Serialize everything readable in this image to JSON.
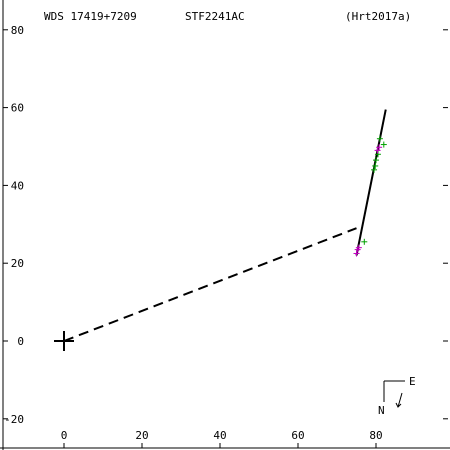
{
  "chart_data": {
    "type": "scatter",
    "title_left": "WDS 17419+7209",
    "title_center": "STF2241AC",
    "title_right": "(Hrt2017a)",
    "x_ticks": [
      0,
      20,
      40,
      60,
      80
    ],
    "y_ticks": [
      80,
      60,
      40,
      20,
      0,
      -20
    ],
    "x_tick_labels": [
      "0",
      "20",
      "40",
      "60",
      "80"
    ],
    "y_tick_labels": [
      "80",
      "60",
      "40",
      "20",
      "0",
      "-20"
    ],
    "xlim": [
      -15,
      100
    ],
    "ylim": [
      -27,
      83
    ],
    "orientation": {
      "north_label": "N",
      "east_label": "E"
    },
    "primary_star": {
      "x": 0,
      "y": 0
    },
    "orbit_line": {
      "start": {
        "x": 75,
        "y": 22
      },
      "end": {
        "x": 82.5,
        "y": 59.5
      }
    },
    "dashed_line": {
      "start": {
        "x": 0,
        "y": 0
      },
      "end": {
        "x": 75,
        "y": 29
      }
    },
    "series": [
      {
        "color": "#00a000",
        "points": [
          {
            "x": 77.0,
            "y": 25.5
          },
          {
            "x": 79.5,
            "y": 44.0
          },
          {
            "x": 80.0,
            "y": 46.5
          },
          {
            "x": 80.5,
            "y": 48.0
          },
          {
            "x": 81.0,
            "y": 52.0
          },
          {
            "x": 82.0,
            "y": 50.5
          },
          {
            "x": 79.8,
            "y": 45.0
          }
        ]
      },
      {
        "color": "#c000c0",
        "points": [
          {
            "x": 75.0,
            "y": 22.5
          },
          {
            "x": 75.3,
            "y": 23.5
          },
          {
            "x": 75.6,
            "y": 24.0
          },
          {
            "x": 80.4,
            "y": 49.0
          },
          {
            "x": 80.8,
            "y": 49.8
          }
        ]
      }
    ]
  }
}
